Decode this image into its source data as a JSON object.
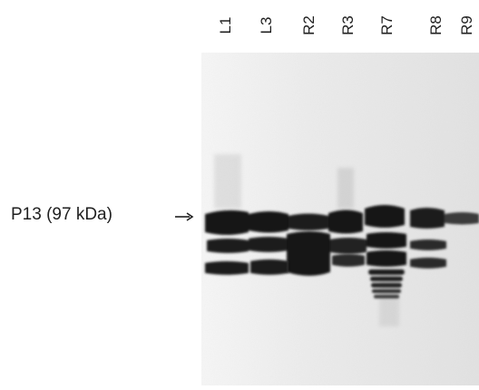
{
  "figure": {
    "marker_label": "P13 (97 kDa)",
    "lanes": [
      {
        "label": "L1"
      },
      {
        "label": "L3"
      },
      {
        "label": "R2"
      },
      {
        "label": "R3"
      },
      {
        "label": "R7"
      },
      {
        "label": "R8"
      },
      {
        "label": "R9"
      }
    ]
  },
  "colors": {
    "membrane_background": "#eaeaea",
    "band_dark": "#141414",
    "band_mid": "#262626",
    "text": "#1f1f1f"
  }
}
